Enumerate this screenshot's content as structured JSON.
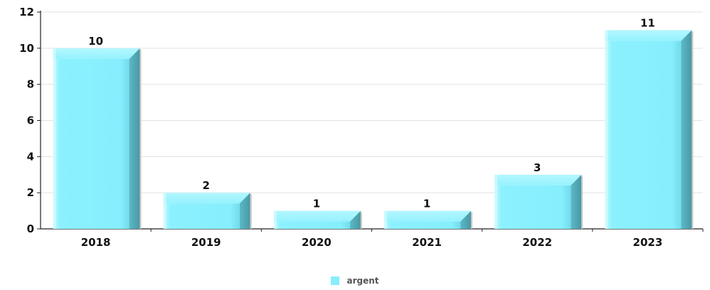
{
  "chart_data": {
    "type": "bar",
    "categories": [
      "2018",
      "2019",
      "2020",
      "2021",
      "2022",
      "2023"
    ],
    "series": [
      {
        "name": "argent",
        "values": [
          10,
          2,
          1,
          1,
          3,
          11
        ],
        "color": "#86EEFD"
      }
    ],
    "data_labels": [
      "10",
      "2",
      "1",
      "1",
      "3",
      "11"
    ],
    "y_ticks": [
      "0",
      "2",
      "4",
      "6",
      "8",
      "10",
      "12"
    ],
    "ylim": [
      0,
      12
    ],
    "grid": true,
    "legend_position": "bottom"
  }
}
